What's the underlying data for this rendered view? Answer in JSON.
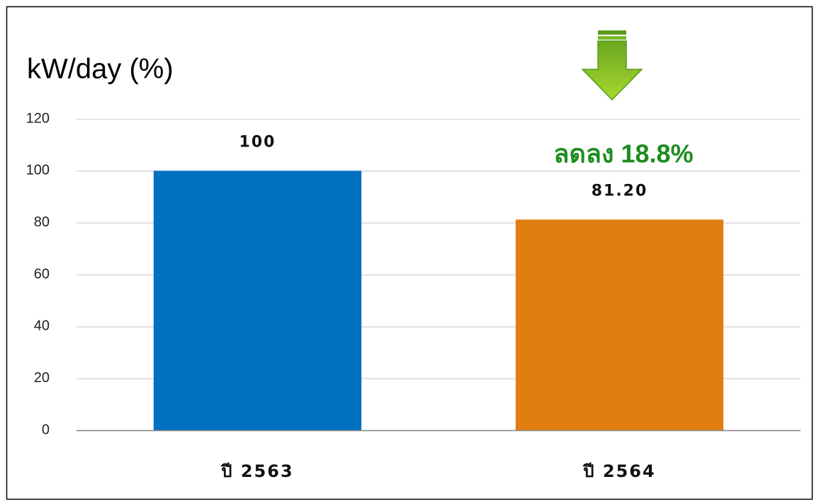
{
  "chart_data": {
    "type": "bar",
    "title": "kW/day (%)",
    "annotation": "ลดลง 18.8%",
    "categories": [
      "ปี 2563",
      "ปี 2564"
    ],
    "values": [
      100,
      81.2
    ],
    "value_labels": [
      "100",
      "81.20"
    ],
    "colors": [
      "#0070c0",
      "#e07f10"
    ],
    "ylim": [
      0,
      120
    ],
    "yticks": [
      0,
      20,
      40,
      60,
      80,
      100,
      120
    ],
    "grid": true
  }
}
